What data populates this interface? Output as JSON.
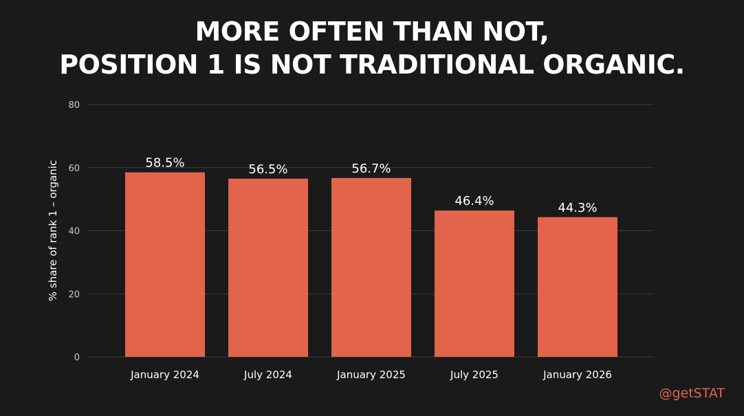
{
  "title_lines": [
    "MORE OFTEN THAN NOT,",
    "POSITION 1 IS NOT TRADITIONAL ORGANIC."
  ],
  "handle": "@getSTAT",
  "colors": {
    "background": "#1a1a1a",
    "bar": "#e2654b",
    "grid": "#3d3d3d",
    "text": "#ffffff",
    "tick": "#cccccc",
    "accent": "#e2654b"
  },
  "chart_data": {
    "type": "bar",
    "title": "MORE OFTEN THAN NOT, POSITION 1 IS NOT TRADITIONAL ORGANIC.",
    "xlabel": "",
    "ylabel": "% share of rank 1 – organic",
    "ylim": [
      0,
      80
    ],
    "yticks": [
      0,
      20,
      40,
      60,
      80
    ],
    "grid": true,
    "legend": "none",
    "categories": [
      "January 2024",
      "July 2024",
      "January 2025",
      "July 2025",
      "January 2026"
    ],
    "values": [
      58.5,
      56.5,
      56.7,
      46.4,
      44.3
    ],
    "data_labels": [
      "58.5%",
      "56.5%",
      "56.7%",
      "46.4%",
      "44.3%"
    ]
  }
}
